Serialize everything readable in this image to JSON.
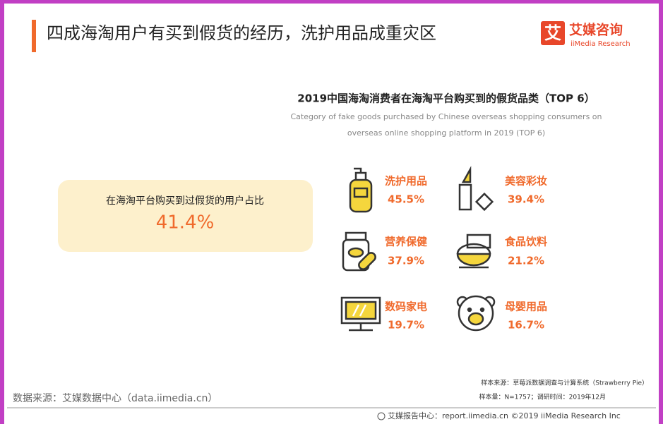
{
  "header": {
    "title": "四成海淘用户有买到假货的经历，洗护用品成重灾区",
    "logo": {
      "mark": "艾",
      "name": "艾媒咨询",
      "english": "iiMedia Research"
    }
  },
  "chart": {
    "title": "2019中国海淘消费者在海淘平台购买到的假货品类（TOP 6）",
    "subtitle": [
      "Category of fake goods purchased by Chinese overseas shopping consumers on",
      "overseas online shopping platform in 2019 (TOP 6)"
    ]
  },
  "highlight": {
    "label": "在海淘平台购买到过假货的用户占比",
    "value": "41.4%"
  },
  "items": [
    {
      "label": "洗护用品",
      "value": "45.5%"
    },
    {
      "label": "美容彩妆",
      "value": "39.4%"
    },
    {
      "label": "营养保健",
      "value": "37.9%"
    },
    {
      "label": "食品饮料",
      "value": "21.2%"
    },
    {
      "label": "数码家电",
      "value": "19.7%"
    },
    {
      "label": "母婴用品",
      "value": "16.7%"
    }
  ],
  "notes": [
    "样本来源：草莓派数据调查与计算系统（Strawberry Pie）",
    "样本量：N=1757；调研时间：2019年12月"
  ],
  "source": "数据来源：艾媒数据中心（data.iimedia.cn）",
  "footer": "艾媒报告中心：report.iimedia.cn  ©2019  iiMedia Research  Inc"
}
